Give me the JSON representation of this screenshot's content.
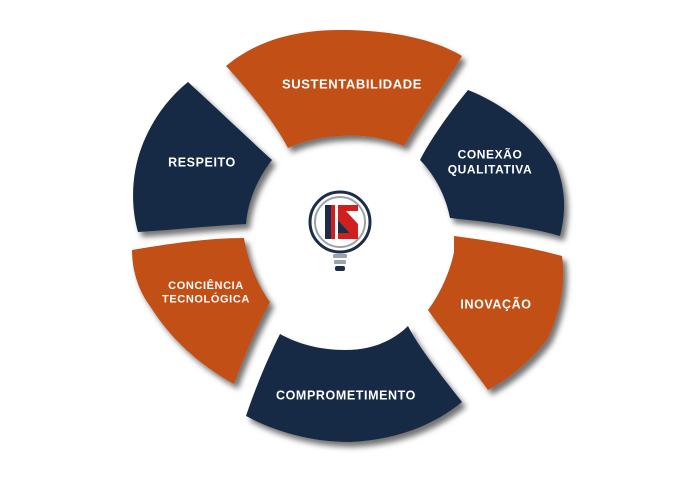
{
  "colors": {
    "navy": "#172a44",
    "orange": "#c24f12",
    "logo_red": "#d11f1f",
    "logo_navy": "#1c2d4a",
    "logo_gray": "#9aa3ad"
  },
  "segments": [
    {
      "key": "sustentabilidade",
      "lines": [
        "SUSTENTABILIDADE"
      ],
      "color": "orange"
    },
    {
      "key": "conexao-qualitativa",
      "lines": [
        "CONEXÃO",
        "QUALITATIVA"
      ],
      "color": "navy"
    },
    {
      "key": "inovacao",
      "lines": [
        "INOVAÇÃO"
      ],
      "color": "orange"
    },
    {
      "key": "comprometimento",
      "lines": [
        "COMPROMETIMENTO"
      ],
      "color": "navy"
    },
    {
      "key": "conciencia-tecnologica",
      "lines": [
        "CONCIÊNCIA",
        "TECNOLÓGICA"
      ],
      "color": "orange"
    },
    {
      "key": "respeito",
      "lines": [
        "RESPEITO"
      ],
      "color": "navy"
    }
  ],
  "center_logo": {
    "icon": "lightbulb-logo-icon"
  }
}
